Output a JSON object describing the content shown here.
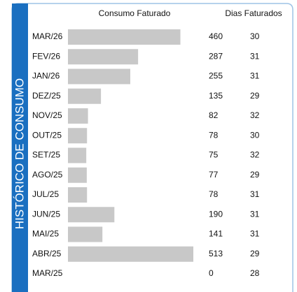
{
  "chart_data": {
    "type": "bar",
    "orientation": "horizontal",
    "title": "HISTÓRICO DE CONSUMO",
    "value_header": "Consumo Faturado",
    "days_header": "Dias Faturados",
    "categories": [
      "MAR/26",
      "FEV/26",
      "JAN/26",
      "DEZ/25",
      "NOV/25",
      "OUT/25",
      "SET/25",
      "AGO/25",
      "JUL/25",
      "JUN/25",
      "MAI/25",
      "ABR/25",
      "MAR/25"
    ],
    "values": [
      460,
      287,
      255,
      135,
      82,
      78,
      75,
      77,
      78,
      190,
      141,
      513,
      0
    ],
    "days": [
      30,
      31,
      31,
      29,
      32,
      30,
      32,
      29,
      31,
      31,
      31,
      29,
      28
    ],
    "color": "#c8c8c8"
  }
}
